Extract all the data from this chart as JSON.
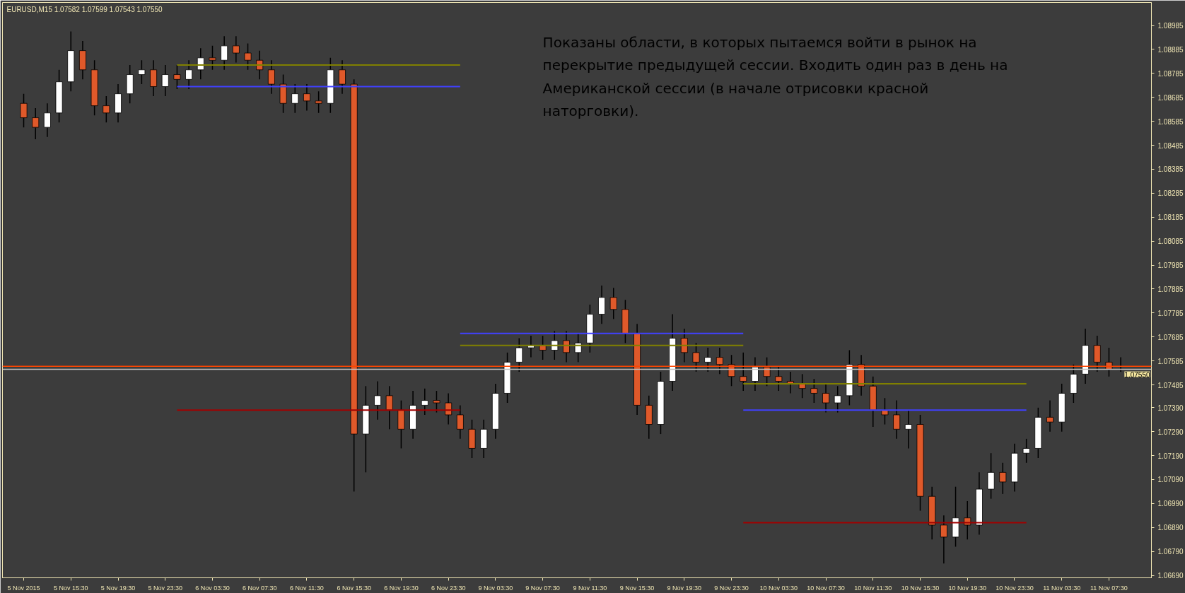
{
  "chart_data": {
    "type": "candlestick",
    "title": "EURUSD,M15  1.07582 1.07599 1.07543 1.07550",
    "categories": [
      "5 Nov 2015",
      null,
      null,
      null,
      "5 Nov 15:30",
      null,
      null,
      null,
      "5 Nov 19:30",
      null,
      null,
      null,
      "5 Nov 23:30",
      null,
      null,
      null,
      "6 Nov 03:30",
      null,
      null,
      null,
      "6 Nov 07:30",
      null,
      null,
      null,
      "6 Nov 11:30",
      null,
      null,
      null,
      "6 Nov 15:30",
      null,
      null,
      null,
      "6 Nov 19:30",
      null,
      null,
      null,
      "6 Nov 23:30",
      null,
      null,
      null,
      "9 Nov 03:30",
      null,
      null,
      null,
      "9 Nov 07:30",
      null,
      null,
      null,
      "9 Nov 11:30",
      null,
      null,
      null,
      "9 Nov 15:30",
      null,
      null,
      null,
      "9 Nov 19:30",
      null,
      null,
      null,
      "9 Nov 23:30",
      null,
      null,
      null,
      "10 Nov 03:30",
      null,
      null,
      null,
      "10 Nov 07:30",
      null,
      null,
      null,
      "10 Nov 11:30",
      null,
      null,
      null,
      "10 Nov 15:30",
      null,
      null,
      null,
      "10 Nov 19:30",
      null,
      null,
      null,
      "10 Nov 23:30",
      null,
      null,
      null,
      "11 Nov 03:30",
      null,
      null,
      null,
      "11 Nov 07:30",
      null
    ],
    "ohlc": [
      [
        1.0866,
        1.087,
        1.0856,
        1.086
      ],
      [
        1.086,
        1.0864,
        1.0851,
        1.0856
      ],
      [
        1.0856,
        1.0866,
        1.0852,
        1.0862
      ],
      [
        1.0862,
        1.088,
        1.0858,
        1.0875
      ],
      [
        1.0875,
        1.0896,
        1.0871,
        1.0888
      ],
      [
        1.0888,
        1.0892,
        1.0876,
        1.088
      ],
      [
        1.088,
        1.0884,
        1.0861,
        1.0865
      ],
      [
        1.0865,
        1.0869,
        1.0858,
        1.0862
      ],
      [
        1.0862,
        1.0874,
        1.0858,
        1.087
      ],
      [
        1.087,
        1.0882,
        1.0866,
        1.0878
      ],
      [
        1.0878,
        1.0884,
        1.0874,
        1.088
      ],
      [
        1.088,
        1.0884,
        1.0869,
        1.0873
      ],
      [
        1.0873,
        1.0882,
        1.0869,
        1.0878
      ],
      [
        1.0878,
        1.0882,
        1.0872,
        1.0876
      ],
      [
        1.0876,
        1.0884,
        1.0872,
        1.088
      ],
      [
        1.088,
        1.0889,
        1.0876,
        1.0885
      ],
      [
        1.0885,
        1.089,
        1.088,
        1.0884
      ],
      [
        1.0884,
        1.0894,
        1.088,
        1.089
      ],
      [
        1.089,
        1.0894,
        1.0883,
        1.0887
      ],
      [
        1.0887,
        1.0891,
        1.088,
        1.0884
      ],
      [
        1.0884,
        1.0888,
        1.0876,
        1.088
      ],
      [
        1.088,
        1.0884,
        1.087,
        1.0874
      ],
      [
        1.0874,
        1.0878,
        1.0862,
        1.0866
      ],
      [
        1.0866,
        1.0874,
        1.0862,
        1.087
      ],
      [
        1.087,
        1.0874,
        1.0863,
        1.0867
      ],
      [
        1.0867,
        1.0871,
        1.0862,
        1.0866
      ],
      [
        1.0866,
        1.0885,
        1.0862,
        1.088
      ],
      [
        1.088,
        1.0884,
        1.087,
        1.0874
      ],
      [
        1.0874,
        1.0876,
        1.0704,
        1.0728
      ],
      [
        1.0728,
        1.0748,
        1.0712,
        1.074
      ],
      [
        1.074,
        1.075,
        1.0734,
        1.0744
      ],
      [
        1.0744,
        1.0748,
        1.073,
        1.0738
      ],
      [
        1.0738,
        1.0742,
        1.0722,
        1.073
      ],
      [
        1.073,
        1.0746,
        1.0726,
        1.074
      ],
      [
        1.074,
        1.0747,
        1.0736,
        1.0742
      ],
      [
        1.0742,
        1.0746,
        1.0737,
        1.0741
      ],
      [
        1.0741,
        1.0745,
        1.0732,
        1.0736
      ],
      [
        1.0736,
        1.074,
        1.0726,
        1.073
      ],
      [
        1.073,
        1.0734,
        1.0718,
        1.0722
      ],
      [
        1.0722,
        1.0734,
        1.0718,
        1.073
      ],
      [
        1.073,
        1.0749,
        1.0726,
        1.0745
      ],
      [
        1.0745,
        1.0762,
        1.0741,
        1.0758
      ],
      [
        1.0758,
        1.0768,
        1.0754,
        1.0764
      ],
      [
        1.0764,
        1.0769,
        1.076,
        1.0765
      ],
      [
        1.0765,
        1.0769,
        1.0759,
        1.0763
      ],
      [
        1.0763,
        1.0771,
        1.0759,
        1.0767
      ],
      [
        1.0767,
        1.0771,
        1.0758,
        1.0762
      ],
      [
        1.0762,
        1.077,
        1.0758,
        1.0766
      ],
      [
        1.0766,
        1.0782,
        1.0762,
        1.0778
      ],
      [
        1.0778,
        1.079,
        1.0774,
        1.0785
      ],
      [
        1.0785,
        1.0789,
        1.0776,
        1.078
      ],
      [
        1.078,
        1.0784,
        1.0766,
        1.077
      ],
      [
        1.077,
        1.0774,
        1.0736,
        1.074
      ],
      [
        1.074,
        1.0744,
        1.0726,
        1.0732
      ],
      [
        1.0732,
        1.0754,
        1.0728,
        1.075
      ],
      [
        1.075,
        1.0778,
        1.0746,
        1.0768
      ],
      [
        1.0768,
        1.0772,
        1.0758,
        1.0762
      ],
      [
        1.0762,
        1.0766,
        1.0754,
        1.0758
      ],
      [
        1.0758,
        1.0764,
        1.0754,
        1.076
      ],
      [
        1.076,
        1.0764,
        1.0753,
        1.0757
      ],
      [
        1.0757,
        1.0761,
        1.0748,
        1.0752
      ],
      [
        1.0752,
        1.0762,
        1.0746,
        1.075
      ],
      [
        1.075,
        1.076,
        1.0746,
        1.0756
      ],
      [
        1.0756,
        1.076,
        1.0748,
        1.0752
      ],
      [
        1.0752,
        1.0756,
        1.0746,
        1.075
      ],
      [
        1.075,
        1.0754,
        1.0745,
        1.0749
      ],
      [
        1.0749,
        1.0753,
        1.0743,
        1.0747
      ],
      [
        1.0747,
        1.0751,
        1.0741,
        1.0745
      ],
      [
        1.0745,
        1.0749,
        1.0737,
        1.0741
      ],
      [
        1.0741,
        1.0748,
        1.0737,
        1.0744
      ],
      [
        1.0744,
        1.0763,
        1.074,
        1.0757
      ],
      [
        1.0757,
        1.0761,
        1.0744,
        1.0748
      ],
      [
        1.0748,
        1.0752,
        1.0731,
        1.0738
      ],
      [
        1.0738,
        1.0743,
        1.0732,
        1.0736
      ],
      [
        1.0736,
        1.0742,
        1.0726,
        1.073
      ],
      [
        1.073,
        1.0738,
        1.0722,
        1.0732
      ],
      [
        1.0732,
        1.0736,
        1.0696,
        1.0702
      ],
      [
        1.0702,
        1.0706,
        1.0684,
        1.069
      ],
      [
        1.069,
        1.0694,
        1.0674,
        1.0685
      ],
      [
        1.0685,
        1.0706,
        1.0681,
        1.0693
      ],
      [
        1.0693,
        1.07,
        1.0684,
        1.069
      ],
      [
        1.069,
        1.0712,
        1.0686,
        1.0705
      ],
      [
        1.0705,
        1.072,
        1.0701,
        1.0712
      ],
      [
        1.0712,
        1.0716,
        1.0703,
        1.0708
      ],
      [
        1.0708,
        1.0724,
        1.0704,
        1.072
      ],
      [
        1.072,
        1.0726,
        1.0716,
        1.0722
      ],
      [
        1.0722,
        1.0739,
        1.0718,
        1.0735
      ],
      [
        1.0735,
        1.0742,
        1.0729,
        1.0733
      ],
      [
        1.0733,
        1.0749,
        1.0729,
        1.0745
      ],
      [
        1.0745,
        1.0757,
        1.0741,
        1.0753
      ],
      [
        1.0753,
        1.0772,
        1.0749,
        1.0765
      ],
      [
        1.0765,
        1.0769,
        1.0754,
        1.0758
      ],
      [
        1.0758,
        1.0764,
        1.0752,
        1.0755
      ],
      [
        1.0755,
        1.076,
        1.0754,
        1.0755
      ]
    ],
    "ylim": [
      1.0668,
      1.09081
    ],
    "yticks": [
      {
        "value": 1.0669,
        "label": "1.06690"
      },
      {
        "value": 1.0679,
        "label": "1.06790"
      },
      {
        "value": 1.0689,
        "label": "1.06890"
      },
      {
        "value": 1.0699,
        "label": "1.06990"
      },
      {
        "value": 1.0709,
        "label": "1.07090"
      },
      {
        "value": 1.0719,
        "label": "1.07190"
      },
      {
        "value": 1.0729,
        "label": "1.07290"
      },
      {
        "value": 1.0739,
        "label": "1.07390"
      },
      1.07485,
      1.07585,
      1.07685,
      1.07785,
      1.07885,
      1.07985,
      1.08085,
      1.08185,
      1.08285,
      1.08385,
      1.08485,
      1.08585,
      1.08685,
      1.08785,
      1.08885,
      1.08985
    ],
    "series": [
      {
        "type": "line",
        "color": "#808000",
        "values": [
          null,
          null,
          null,
          null,
          null,
          null,
          null,
          null,
          null,
          null,
          null,
          null,
          null,
          1.0882,
          1.0882,
          1.0882,
          1.0882,
          1.0882,
          1.0882,
          1.0882,
          1.0882,
          1.0882,
          1.0882,
          1.0882,
          1.0882,
          1.0882,
          1.0882,
          1.0882,
          1.0882,
          1.0882,
          1.0882,
          1.0882,
          1.0882,
          1.0882,
          1.0882,
          1.0882,
          1.0882,
          1.0882,
          null,
          null,
          null,
          null,
          null,
          null,
          null,
          null,
          null,
          null,
          null,
          null,
          null,
          null,
          null,
          null,
          null,
          null,
          null,
          null,
          null,
          null,
          null,
          null,
          null,
          null,
          null,
          null,
          null,
          null,
          null,
          null,
          null,
          null,
          null,
          null,
          null,
          null,
          null,
          null,
          null,
          null,
          null,
          null,
          null,
          null,
          null,
          null,
          null,
          null,
          null,
          null,
          null,
          null,
          null,
          null
        ]
      },
      {
        "type": "line",
        "color": "#4040ff",
        "values": [
          null,
          null,
          null,
          null,
          null,
          null,
          null,
          null,
          null,
          null,
          null,
          null,
          null,
          1.0873,
          1.0873,
          1.0873,
          1.0873,
          1.0873,
          1.0873,
          1.0873,
          1.0873,
          1.0873,
          1.0873,
          1.0873,
          1.0873,
          1.0873,
          1.0873,
          1.0873,
          1.0873,
          1.0873,
          1.0873,
          1.0873,
          1.0873,
          1.0873,
          1.0873,
          1.0873,
          1.0873,
          1.0873,
          null,
          null,
          null,
          null,
          null,
          null,
          null,
          null,
          null,
          null,
          null,
          null,
          null,
          null,
          null,
          null,
          null,
          null,
          null,
          null,
          null,
          null,
          null,
          null,
          null,
          null,
          null,
          null,
          null,
          null,
          null,
          null,
          null,
          null,
          null,
          null,
          null,
          null,
          null,
          null,
          null,
          null,
          null,
          null,
          null,
          null,
          null,
          null,
          null,
          null,
          null,
          null,
          null,
          null,
          null,
          null
        ]
      },
      {
        "type": "line",
        "color": "#a00000",
        "values": [
          null,
          null,
          null,
          null,
          null,
          null,
          null,
          null,
          null,
          null,
          null,
          null,
          null,
          1.0738,
          1.0738,
          1.0738,
          1.0738,
          1.0738,
          1.0738,
          1.0738,
          1.0738,
          1.0738,
          1.0738,
          1.0738,
          1.0738,
          1.0738,
          1.0738,
          1.0738,
          1.0738,
          1.0738,
          1.0738,
          1.0738,
          1.0738,
          1.0738,
          1.0738,
          1.0738,
          1.0738,
          1.0738,
          null,
          null,
          null,
          null,
          null,
          null,
          null,
          null,
          null,
          null,
          null,
          null,
          null,
          null,
          null,
          null,
          null,
          null,
          null,
          null,
          null,
          null,
          null,
          null,
          null,
          null,
          null,
          null,
          null,
          null,
          null,
          null,
          null,
          null,
          null,
          null,
          null,
          null,
          null,
          null,
          null,
          null,
          null,
          null,
          null,
          null,
          null,
          null,
          null,
          null,
          null,
          null,
          null,
          null,
          null,
          null
        ]
      },
      {
        "type": "line",
        "color": "#4040ff",
        "values": [
          null,
          null,
          null,
          null,
          null,
          null,
          null,
          null,
          null,
          null,
          null,
          null,
          null,
          null,
          null,
          null,
          null,
          null,
          null,
          null,
          null,
          null,
          null,
          null,
          null,
          null,
          null,
          null,
          null,
          null,
          null,
          null,
          null,
          null,
          null,
          null,
          null,
          1.077,
          1.077,
          1.077,
          1.077,
          1.077,
          1.077,
          1.077,
          1.077,
          1.077,
          1.077,
          1.077,
          1.077,
          1.077,
          1.077,
          1.077,
          1.077,
          1.077,
          1.077,
          1.077,
          1.077,
          1.077,
          1.077,
          1.077,
          1.077,
          1.077,
          null,
          null,
          null,
          null,
          null,
          null,
          null,
          null,
          null,
          null,
          null,
          null,
          null,
          null,
          null,
          null,
          null,
          null,
          null,
          null,
          null,
          null,
          null,
          null,
          null,
          null,
          null,
          null,
          null,
          null,
          null,
          null
        ]
      },
      {
        "type": "line",
        "color": "#808000",
        "values": [
          null,
          null,
          null,
          null,
          null,
          null,
          null,
          null,
          null,
          null,
          null,
          null,
          null,
          null,
          null,
          null,
          null,
          null,
          null,
          null,
          null,
          null,
          null,
          null,
          null,
          null,
          null,
          null,
          null,
          null,
          null,
          null,
          null,
          null,
          null,
          null,
          null,
          1.0765,
          1.0765,
          1.0765,
          1.0765,
          1.0765,
          1.0765,
          1.0765,
          1.0765,
          1.0765,
          1.0765,
          1.0765,
          1.0765,
          1.0765,
          1.0765,
          1.0765,
          1.0765,
          1.0765,
          1.0765,
          1.0765,
          1.0765,
          1.0765,
          1.0765,
          1.0765,
          1.0765,
          1.0765,
          null,
          null,
          null,
          null,
          null,
          null,
          null,
          null,
          null,
          null,
          null,
          null,
          null,
          null,
          null,
          null,
          null,
          null,
          null,
          null,
          null,
          null,
          null,
          null,
          null,
          null,
          null,
          null,
          null,
          null,
          null,
          null
        ]
      },
      {
        "type": "line",
        "color": "#808000",
        "values": [
          null,
          null,
          null,
          null,
          null,
          null,
          null,
          null,
          null,
          null,
          null,
          null,
          null,
          null,
          null,
          null,
          null,
          null,
          null,
          null,
          null,
          null,
          null,
          null,
          null,
          null,
          null,
          null,
          null,
          null,
          null,
          null,
          null,
          null,
          null,
          null,
          null,
          null,
          null,
          null,
          null,
          null,
          null,
          null,
          null,
          null,
          null,
          null,
          null,
          null,
          null,
          null,
          null,
          null,
          null,
          null,
          null,
          null,
          null,
          null,
          null,
          1.0749,
          1.0749,
          1.0749,
          1.0749,
          1.0749,
          1.0749,
          1.0749,
          1.0749,
          1.0749,
          1.0749,
          1.0749,
          1.0749,
          1.0749,
          1.0749,
          1.0749,
          1.0749,
          1.0749,
          1.0749,
          1.0749,
          1.0749,
          1.0749,
          1.0749,
          1.0749,
          1.0749,
          1.0749,
          null,
          null,
          null,
          null,
          null,
          null,
          null,
          null
        ]
      },
      {
        "type": "line",
        "color": "#4040ff",
        "values": [
          null,
          null,
          null,
          null,
          null,
          null,
          null,
          null,
          null,
          null,
          null,
          null,
          null,
          null,
          null,
          null,
          null,
          null,
          null,
          null,
          null,
          null,
          null,
          null,
          null,
          null,
          null,
          null,
          null,
          null,
          null,
          null,
          null,
          null,
          null,
          null,
          null,
          null,
          null,
          null,
          null,
          null,
          null,
          null,
          null,
          null,
          null,
          null,
          null,
          null,
          null,
          null,
          null,
          null,
          null,
          null,
          null,
          null,
          null,
          null,
          null,
          1.0738,
          1.0738,
          1.0738,
          1.0738,
          1.0738,
          1.0738,
          1.0738,
          1.0738,
          1.0738,
          1.0738,
          1.0738,
          1.0738,
          1.0738,
          1.0738,
          1.0738,
          1.0738,
          1.0738,
          1.0738,
          1.0738,
          1.0738,
          1.0738,
          1.0738,
          1.0738,
          1.0738,
          1.0738,
          null,
          null,
          null,
          null,
          null,
          null,
          null,
          null
        ]
      },
      {
        "type": "line",
        "color": "#a00000",
        "values": [
          null,
          null,
          null,
          null,
          null,
          null,
          null,
          null,
          null,
          null,
          null,
          null,
          null,
          null,
          null,
          null,
          null,
          null,
          null,
          null,
          null,
          null,
          null,
          null,
          null,
          null,
          null,
          null,
          null,
          null,
          null,
          null,
          null,
          null,
          null,
          null,
          null,
          null,
          null,
          null,
          null,
          null,
          null,
          null,
          null,
          null,
          null,
          null,
          null,
          null,
          null,
          null,
          null,
          null,
          null,
          null,
          null,
          null,
          null,
          null,
          null,
          1.0691,
          1.0691,
          1.0691,
          1.0691,
          1.0691,
          1.0691,
          1.0691,
          1.0691,
          1.0691,
          1.0691,
          1.0691,
          1.0691,
          1.0691,
          1.0691,
          1.0691,
          1.0691,
          1.0691,
          1.0691,
          1.0691,
          1.0691,
          1.0691,
          1.0691,
          1.0691,
          1.0691,
          1.0691,
          null,
          null,
          null,
          null,
          null,
          null,
          null,
          null
        ]
      }
    ],
    "ref_lines": [
      {
        "axis": "y",
        "value": 1.07563,
        "color": "#ff4500"
      },
      {
        "axis": "y",
        "value": 1.0755,
        "label": "1.07550",
        "color": "#c0c0c0"
      }
    ],
    "annotations": [
      "Показаны области, в которых пытаемся войти в рынок на\nперекрытие предыдущей сессии. Входить один раз в день на\nАмериканской сессии (в начале отрисовки красной\nнаторговки)."
    ],
    "grid": false
  }
}
